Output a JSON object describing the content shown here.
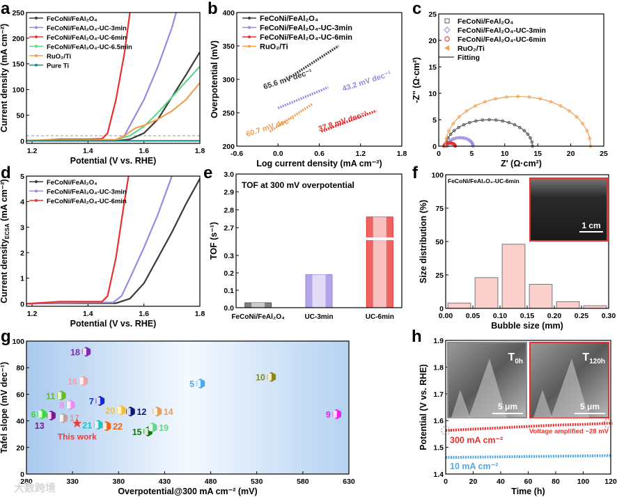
{
  "panel_letters": [
    "a",
    "b",
    "c",
    "d",
    "e",
    "f",
    "g",
    "h"
  ],
  "watermark": "大数跨境",
  "chart_data": [
    {
      "id": "a",
      "type": "line",
      "xlabel": "Potential (V vs. RHE)",
      "ylabel": "Current density (mA cm⁻²)",
      "xlim": [
        1.18,
        1.8
      ],
      "ylim": [
        -5,
        250
      ],
      "xticks": [
        1.2,
        1.4,
        1.6,
        1.8
      ],
      "xticklabels": [
        "1.2",
        "1.4",
        "1.6",
        "1.8"
      ],
      "yticks": [
        0,
        50,
        100,
        150,
        200,
        250
      ],
      "yticklabels": [
        "0",
        "50",
        "100",
        "150",
        "200",
        "250"
      ],
      "reference_line": {
        "y": 10,
        "style": "dashed"
      },
      "series": [
        {
          "name": "FeCoNi/FeAl₂O₄",
          "color": "#3a3a3a",
          "points": [
            [
              1.18,
              0
            ],
            [
              1.5,
              0
            ],
            [
              1.55,
              3
            ],
            [
              1.6,
              15
            ],
            [
              1.65,
              42
            ],
            [
              1.7,
              85
            ],
            [
              1.75,
              128
            ],
            [
              1.8,
              173
            ]
          ]
        },
        {
          "name": "FeCoNi/FeAl₂O₄-UC-3min",
          "color": "#9b87e0",
          "points": [
            [
              1.18,
              0
            ],
            [
              1.5,
              2
            ],
            [
              1.53,
              10
            ],
            [
              1.56,
              40
            ],
            [
              1.6,
              80
            ],
            [
              1.65,
              145
            ],
            [
              1.7,
              220
            ],
            [
              1.715,
              250
            ]
          ]
        },
        {
          "name": "FeCoNi/FeAl₂O₄-UC-6min",
          "color": "#e8302e",
          "points": [
            [
              1.18,
              0
            ],
            [
              1.3,
              3
            ],
            [
              1.4,
              3
            ],
            [
              1.45,
              4
            ],
            [
              1.47,
              15
            ],
            [
              1.5,
              80
            ],
            [
              1.53,
              170
            ],
            [
              1.55,
              250
            ]
          ]
        },
        {
          "name": "FeCoNi/FeAl₂O₄-UC-6.5min",
          "color": "#5fd68a",
          "points": [
            [
              1.18,
              1
            ],
            [
              1.5,
              2
            ],
            [
              1.55,
              10
            ],
            [
              1.6,
              28
            ],
            [
              1.65,
              55
            ],
            [
              1.7,
              85
            ],
            [
              1.75,
              115
            ],
            [
              1.8,
              145
            ]
          ]
        },
        {
          "name": "RuO₂/Ti",
          "color": "#f0a050",
          "points": [
            [
              1.18,
              1
            ],
            [
              1.5,
              2
            ],
            [
              1.53,
              10
            ],
            [
              1.57,
              25
            ],
            [
              1.6,
              30
            ],
            [
              1.65,
              42
            ],
            [
              1.7,
              58
            ],
            [
              1.75,
              80
            ],
            [
              1.8,
              113
            ]
          ]
        },
        {
          "name": "Pure Ti",
          "color": "#1a8a8a",
          "points": [
            [
              1.18,
              0
            ],
            [
              1.8,
              0
            ]
          ]
        }
      ]
    },
    {
      "id": "b",
      "type": "line",
      "xlabel": "Log current density (mA cm⁻²)",
      "ylabel": "Overpotential (mV)",
      "xlim": [
        -0.6,
        1.8
      ],
      "ylim": [
        200,
        400
      ],
      "xticks": [
        -0.6,
        0,
        0.6,
        1.2,
        1.8
      ],
      "xticklabels": [
        "-0.6",
        "0.0",
        "0.6",
        "1.2",
        "1.8"
      ],
      "yticks": [
        200,
        250,
        300,
        350,
        400
      ],
      "yticklabels": [
        "200",
        "250",
        "300",
        "350",
        "400"
      ],
      "series": [
        {
          "name": "FeCoNi/FeAl₂O₄",
          "color": "#3a3a3a",
          "points": [
            [
              0.1,
              298
            ],
            [
              0.88,
              350
            ]
          ],
          "annotation": "65.6 mV dec⁻¹",
          "annotation_at": [
            -0.2,
            285
          ]
        },
        {
          "name": "FeCoNi/FeAl₂O₄-UC-3min",
          "color": "#9b87e0",
          "points": [
            [
              0.0,
              257
            ],
            [
              0.73,
              288
            ]
          ],
          "annotation": "43.2 mV dec⁻¹",
          "annotation_at": [
            0.95,
            282
          ]
        },
        {
          "name": "FeCoNi/FeAl₂O₄-UC-6min",
          "color": "#e8302e",
          "points": [
            [
              0.63,
              222
            ],
            [
              1.43,
              253
            ]
          ],
          "annotation": "37.8 mV dec⁻¹",
          "annotation_at": [
            0.6,
            222
          ]
        },
        {
          "name": "RuO₂/Ti",
          "color": "#f0a050",
          "points": [
            [
              -0.12,
              222
            ],
            [
              0.5,
              263
            ]
          ],
          "annotation": "60.7 mV dec⁻¹",
          "annotation_at": [
            -0.45,
            214
          ]
        }
      ]
    },
    {
      "id": "c",
      "type": "scatter",
      "xlabel": "Z' (Ω·cm²)",
      "ylabel": "-Z'' (Ω·cm²)",
      "xlim": [
        0,
        25
      ],
      "ylim": [
        0,
        25
      ],
      "xticks": [
        0,
        5,
        10,
        15,
        20,
        25
      ],
      "xticklabels": [
        "0",
        "5",
        "10",
        "15",
        "20",
        "25"
      ],
      "yticks": [
        0,
        5,
        10,
        15,
        20,
        25
      ],
      "yticklabels": [
        "0",
        "5",
        "10",
        "15",
        "20",
        "25"
      ],
      "fit_label": "Fitting",
      "series": [
        {
          "name": "FeCoNi/FeAl₂O₄",
          "color": "#555555",
          "marker": "square",
          "arc": {
            "start": 1.1,
            "end": 14.2,
            "peak": 5.0
          }
        },
        {
          "name": "FeCoNi/FeAl₂O₄-UC-3min",
          "color": "#9b87e0",
          "marker": "diamond",
          "arc": {
            "start": 1.3,
            "end": 5.2,
            "peak": 1.6
          }
        },
        {
          "name": "FeCoNi/FeAl₂O₄-UC-6min",
          "color": "#e8302e",
          "marker": "circle",
          "arc": {
            "start": 0.8,
            "end": 2.5,
            "peak": 0.6
          }
        },
        {
          "name": "RuO₂/Ti",
          "color": "#f0a050",
          "marker": "triangle",
          "arc": {
            "start": 1.0,
            "end": 23.0,
            "peak": 9.4
          }
        }
      ]
    },
    {
      "id": "d",
      "type": "line",
      "xlabel": "Potential (V vs. RHE)",
      "ylabel": "Current density",
      "ylabel_sub": "ECSA",
      "ylabel_unit": " (mA cm⁻²)",
      "xlim": [
        1.18,
        1.8
      ],
      "ylim": [
        -0.1,
        5
      ],
      "xticks": [
        1.2,
        1.4,
        1.6,
        1.8
      ],
      "xticklabels": [
        "1.2",
        "1.4",
        "1.6",
        "1.8"
      ],
      "yticks": [
        0,
        1,
        2,
        3,
        4,
        5
      ],
      "yticklabels": [
        "0",
        "1",
        "2",
        "3",
        "4",
        "5"
      ],
      "series": [
        {
          "name": "FeCoNi/FeAl₂O₄",
          "color": "#3a3a3a",
          "points": [
            [
              1.18,
              0
            ],
            [
              1.3,
              0.02
            ],
            [
              1.5,
              0.02
            ],
            [
              1.55,
              0.2
            ],
            [
              1.6,
              0.8
            ],
            [
              1.65,
              1.8
            ],
            [
              1.7,
              2.8
            ],
            [
              1.75,
              3.9
            ],
            [
              1.8,
              4.9
            ]
          ]
        },
        {
          "name": "FeCoNi/FeAl₂O₄-UC-3min",
          "color": "#9b87e0",
          "points": [
            [
              1.18,
              0
            ],
            [
              1.3,
              0.03
            ],
            [
              1.49,
              0.05
            ],
            [
              1.52,
              0.3
            ],
            [
              1.55,
              1
            ],
            [
              1.6,
              2.2
            ],
            [
              1.65,
              3.5
            ],
            [
              1.7,
              5
            ]
          ]
        },
        {
          "name": "FeCoNi/FeAl₂O₄-UC-6min",
          "color": "#e8302e",
          "points": [
            [
              1.18,
              0
            ],
            [
              1.3,
              0.08
            ],
            [
              1.45,
              0.08
            ],
            [
              1.47,
              0.3
            ],
            [
              1.5,
              1.8
            ],
            [
              1.53,
              4
            ],
            [
              1.545,
              5
            ]
          ]
        }
      ]
    },
    {
      "id": "e",
      "type": "bar",
      "title": "TOF at 300 mV overpotential",
      "xlabel": "",
      "ylabel": "TOF (s⁻¹)",
      "axis_break": [
        0.38,
        2.65
      ],
      "ylim": [
        0,
        3.0
      ],
      "yticks": [
        0,
        0.1,
        0.2,
        0.3,
        2.7,
        2.8,
        2.9,
        3.0
      ],
      "yticklabels": [
        "0.0",
        "0.1",
        "0.2",
        "0.3",
        "2.7",
        "2.8",
        "2.9",
        "3.0"
      ],
      "categories": [
        "FeCoNi/FeAl₂O₄",
        "UC-3min",
        "UC-6min"
      ],
      "values": [
        0.028,
        0.19,
        2.76
      ],
      "colors": [
        "#555555",
        "#9b87e0",
        "#e8302e"
      ]
    },
    {
      "id": "f",
      "type": "bar",
      "xlabel": "Bubble size (mm)",
      "ylabel": "Size distribution (%)",
      "xlim": [
        0,
        0.3
      ],
      "ylim": [
        0,
        100
      ],
      "xticks": [
        0,
        0.05,
        0.1,
        0.15,
        0.2,
        0.25,
        0.3
      ],
      "xticklabels": [
        "0.00",
        "0.05",
        "0.10",
        "0.15",
        "0.20",
        "0.25",
        "0.30"
      ],
      "yticks": [
        0,
        25,
        50,
        75,
        100
      ],
      "yticklabels": [
        "0",
        "25",
        "50",
        "75",
        "100"
      ],
      "bin_centers": [
        0.025,
        0.075,
        0.125,
        0.175,
        0.225,
        0.275
      ],
      "values": [
        4,
        23,
        48,
        18,
        5,
        2
      ],
      "color": "#e8302e",
      "sample_label": "FeCoNi/FeAl₂O₄-UC-6min",
      "inset_scale_label": "1 cm"
    },
    {
      "id": "g",
      "type": "scatter",
      "xlabel": "Overpotential@300 mA cm⁻² (mV)",
      "ylabel": "Tafel slope (mV dec⁻¹)",
      "xlim": [
        280,
        630
      ],
      "ylim": [
        0,
        100
      ],
      "xticks": [
        280,
        330,
        380,
        430,
        480,
        530,
        580,
        630
      ],
      "xticklabels": [
        "280",
        "330",
        "380",
        "430",
        "480",
        "530",
        "580",
        "630"
      ],
      "yticks": [
        0,
        20,
        40,
        60,
        80,
        100
      ],
      "yticklabels": [
        "0",
        "20",
        "40",
        "60",
        "80",
        "100"
      ],
      "points": [
        {
          "label": "18",
          "x": 345,
          "y": 92,
          "color": "#7b2fb0"
        },
        {
          "label": "16",
          "x": 342,
          "y": 70,
          "color": "#f0a0a0"
        },
        {
          "label": "11",
          "x": 318,
          "y": 59,
          "color": "#66bb22"
        },
        {
          "label": "8",
          "x": 328,
          "y": 52,
          "color": "#f08cf0"
        },
        {
          "label": "7",
          "x": 360,
          "y": 55,
          "color": "#1a2acc"
        },
        {
          "label": "6",
          "x": 297,
          "y": 45,
          "color": "#33dd33"
        },
        {
          "label": "13",
          "x": 307,
          "y": 44,
          "color": "#7a1a8a"
        },
        {
          "label": "17",
          "x": 320,
          "y": 42,
          "color": "#c4a0a0"
        },
        {
          "label": "21",
          "x": 358,
          "y": 37,
          "color": "#22c4c4"
        },
        {
          "label": "22",
          "x": 367,
          "y": 36,
          "color": "#ee6611"
        },
        {
          "label": "20",
          "x": 383,
          "y": 48,
          "color": "#f5c030"
        },
        {
          "label": "12",
          "x": 393,
          "y": 47,
          "color": "#0a1a80"
        },
        {
          "label": "14",
          "x": 422,
          "y": 47,
          "color": "#e0a060"
        },
        {
          "label": "15",
          "x": 412,
          "y": 32,
          "color": "#117711"
        },
        {
          "label": "19",
          "x": 417,
          "y": 35,
          "color": "#66d48a"
        },
        {
          "label": "5",
          "x": 469,
          "y": 68,
          "color": "#4ea8e8"
        },
        {
          "label": "10",
          "x": 546,
          "y": 73,
          "color": "#8a8a1a"
        },
        {
          "label": "9",
          "x": 617,
          "y": 45,
          "color": "#ee22ee"
        }
      ],
      "this_work": {
        "label": "This work",
        "x": 335,
        "y": 38,
        "color": "#e8403a"
      }
    },
    {
      "id": "h",
      "type": "line",
      "xlabel": "Time (h)",
      "ylabel": "Potential (V vs. RHE)",
      "xlim": [
        0,
        120
      ],
      "ylim": [
        1.4,
        1.9
      ],
      "xticks": [
        0,
        20,
        40,
        60,
        80,
        100,
        120
      ],
      "xticklabels": [
        "0",
        "20",
        "40",
        "60",
        "80",
        "100",
        "120"
      ],
      "yticks": [
        1.4,
        1.5,
        1.6,
        1.7,
        1.8,
        1.9
      ],
      "yticklabels": [
        "1.4",
        "1.5",
        "1.6",
        "1.7",
        "1.8",
        "1.9"
      ],
      "series": [
        {
          "name": "300 mA cm⁻²",
          "color": "#e8302e",
          "points": [
            [
              0,
              1.563
            ],
            [
              20,
              1.568
            ],
            [
              40,
              1.573
            ],
            [
              60,
              1.578
            ],
            [
              80,
              1.583
            ],
            [
              100,
              1.586
            ],
            [
              120,
              1.59
            ]
          ]
        },
        {
          "name": "10 mA cm⁻²",
          "color": "#4ea8e8",
          "points": [
            [
              0,
              1.462
            ],
            [
              120,
              1.469
            ]
          ]
        }
      ],
      "annotation": "Voltage amplified ~28 mV",
      "insets": [
        {
          "label": "T",
          "sub": "0h",
          "scale": "5 μm"
        },
        {
          "label": "T",
          "sub": "120h",
          "scale": "5 μm"
        }
      ]
    }
  ]
}
